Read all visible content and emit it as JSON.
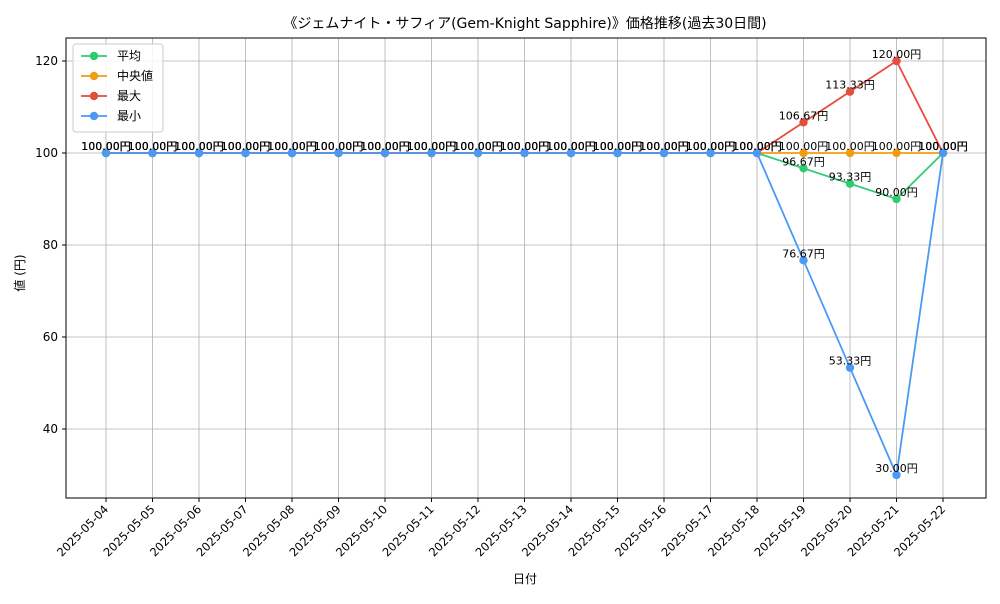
{
  "chart_data": {
    "type": "line",
    "title": "《ジェムナイト・サフィア(Gem-Knight Sapphire)》価格推移(過去30日間)",
    "xlabel": "日付",
    "ylabel": "値 (円)",
    "x": [
      "2025-05-04",
      "2025-05-05",
      "2025-05-06",
      "2025-05-07",
      "2025-05-08",
      "2025-05-09",
      "2025-05-10",
      "2025-05-11",
      "2025-05-12",
      "2025-05-13",
      "2025-05-14",
      "2025-05-15",
      "2025-05-16",
      "2025-05-17",
      "2025-05-18",
      "2025-05-19",
      "2025-05-20",
      "2025-05-21",
      "2025-05-22"
    ],
    "ylim": [
      25,
      125
    ],
    "yticks": [
      40,
      60,
      80,
      100,
      120
    ],
    "grid": true,
    "legend_position": "top-left",
    "value_suffix": "円",
    "series": [
      {
        "name": "平均",
        "color": "#2ecc71",
        "values": [
          100,
          100,
          100,
          100,
          100,
          100,
          100,
          100,
          100,
          100,
          100,
          100,
          100,
          100,
          100,
          96.67,
          93.33,
          90,
          100
        ]
      },
      {
        "name": "中央値",
        "color": "#f39c12",
        "values": [
          100,
          100,
          100,
          100,
          100,
          100,
          100,
          100,
          100,
          100,
          100,
          100,
          100,
          100,
          100,
          100,
          100,
          100,
          100
        ]
      },
      {
        "name": "最大",
        "color": "#e74c3c",
        "values": [
          100,
          100,
          100,
          100,
          100,
          100,
          100,
          100,
          100,
          100,
          100,
          100,
          100,
          100,
          100,
          106.67,
          113.33,
          120,
          100
        ]
      },
      {
        "name": "最小",
        "color": "#4a9af5",
        "values": [
          100,
          100,
          100,
          100,
          100,
          100,
          100,
          100,
          100,
          100,
          100,
          100,
          100,
          100,
          100,
          76.67,
          53.33,
          30,
          100
        ]
      }
    ]
  }
}
